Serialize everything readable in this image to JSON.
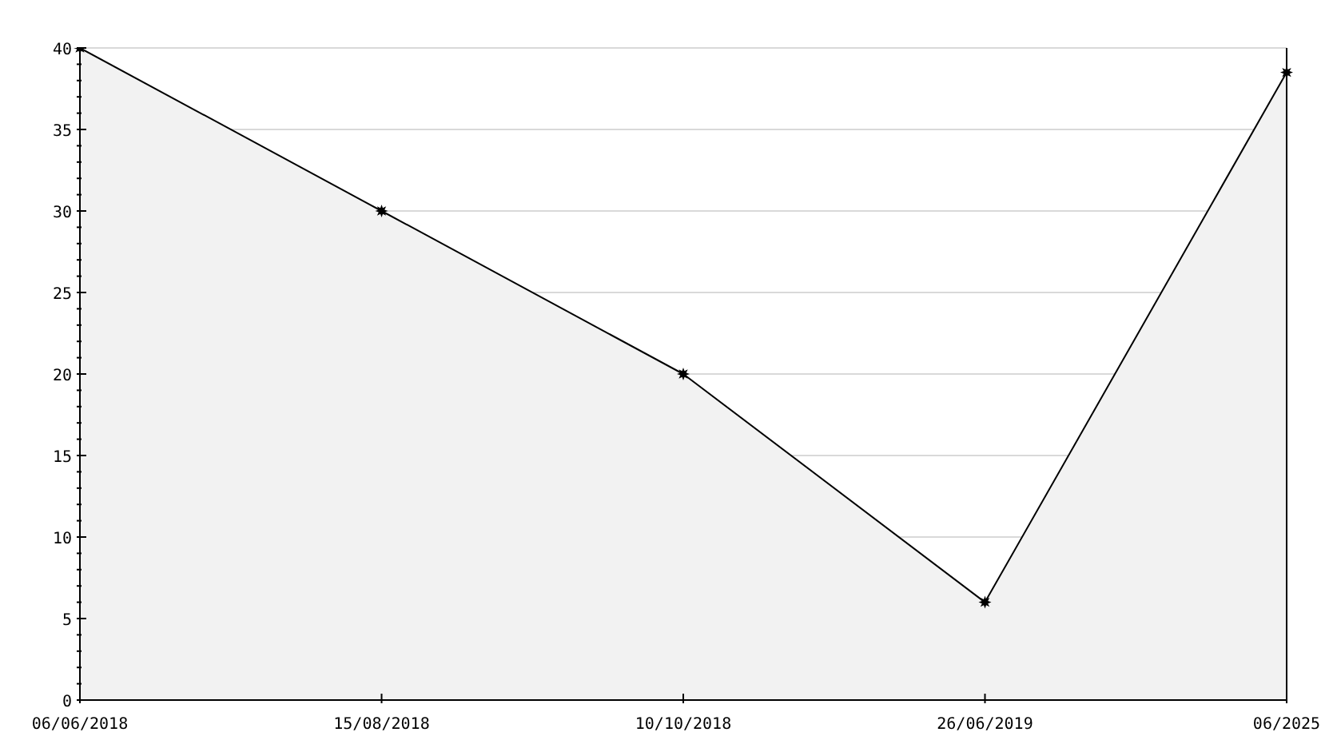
{
  "chart_data": {
    "type": "area",
    "categories": [
      "06/06/2018",
      "15/08/2018",
      "10/10/2018",
      "26/06/2019",
      "06/2025"
    ],
    "series": [
      {
        "color": "#000000",
        "values": [
          40,
          30,
          20,
          6,
          38.5
        ]
      }
    ],
    "ylim": [
      0,
      40
    ],
    "yticks": [
      0,
      {
        "value": 1,
        "label": null
      },
      {
        "value": 2,
        "label": null
      },
      {
        "value": 3,
        "label": null
      },
      {
        "value": 4,
        "label": null
      },
      5,
      {
        "value": 6,
        "label": null
      },
      {
        "value": 7,
        "label": null
      },
      {
        "value": 8,
        "label": null
      },
      {
        "value": 9,
        "label": null
      },
      10,
      {
        "value": 11,
        "label": null
      },
      {
        "value": 12,
        "label": null
      },
      {
        "value": 13,
        "label": null
      },
      {
        "value": 14,
        "label": null
      },
      15,
      {
        "value": 16,
        "label": null
      },
      {
        "value": 17,
        "label": null
      },
      {
        "value": 18,
        "label": null
      },
      {
        "value": 19,
        "label": null
      },
      20,
      {
        "value": 21,
        "label": null
      },
      {
        "value": 22,
        "label": null
      },
      {
        "value": 23,
        "label": null
      },
      {
        "value": 24,
        "label": null
      },
      25,
      {
        "value": 26,
        "label": null
      },
      {
        "value": 27,
        "label": null
      },
      {
        "value": 28,
        "label": null
      },
      {
        "value": 29,
        "label": null
      },
      30,
      {
        "value": 31,
        "label": null
      },
      {
        "value": 32,
        "label": null
      },
      {
        "value": 33,
        "label": null
      },
      {
        "value": 34,
        "label": null
      },
      35,
      {
        "value": 36,
        "label": null
      },
      {
        "value": 37,
        "label": null
      },
      {
        "value": 38,
        "label": null
      },
      {
        "value": 39,
        "label": null
      },
      40
    ],
    "grid": "y",
    "marker": "star"
  }
}
